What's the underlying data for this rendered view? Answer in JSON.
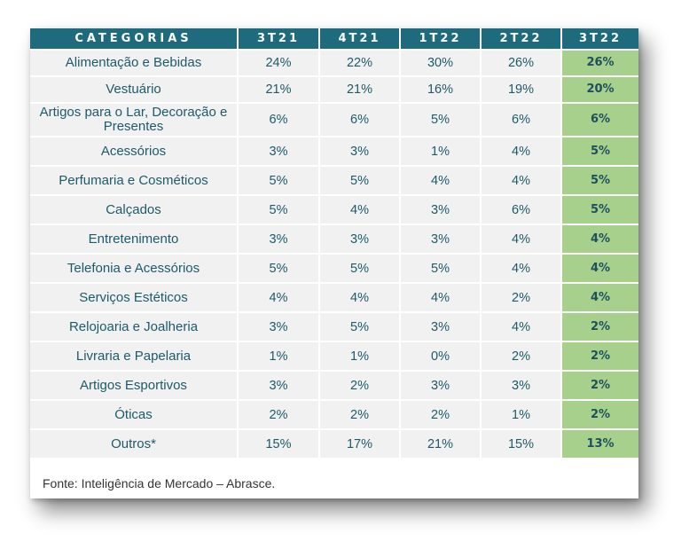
{
  "table": {
    "headers": [
      "CATEGORIAS",
      "3T21",
      "4T21",
      "1T22",
      "2T22",
      "3T22"
    ],
    "rows": [
      {
        "category": "Alimentação e Bebidas",
        "values": [
          "24%",
          "22%",
          "30%",
          "26%",
          "26%"
        ]
      },
      {
        "category": "Vestuário",
        "values": [
          "21%",
          "21%",
          "16%",
          "19%",
          "20%"
        ]
      },
      {
        "category": "Artigos para o Lar, Decoração e Presentes",
        "values": [
          "6%",
          "6%",
          "5%",
          "6%",
          "6%"
        ]
      },
      {
        "category": "Acessórios",
        "values": [
          "3%",
          "3%",
          "1%",
          "4%",
          "5%"
        ]
      },
      {
        "category": "Perfumaria e Cosméticos",
        "values": [
          "5%",
          "5%",
          "4%",
          "4%",
          "5%"
        ]
      },
      {
        "category": "Calçados",
        "values": [
          "5%",
          "4%",
          "3%",
          "6%",
          "5%"
        ]
      },
      {
        "category": "Entretenimento",
        "values": [
          "3%",
          "3%",
          "3%",
          "4%",
          "4%"
        ]
      },
      {
        "category": "Telefonia e Acessórios",
        "values": [
          "5%",
          "5%",
          "5%",
          "4%",
          "4%"
        ]
      },
      {
        "category": "Serviços Estéticos",
        "values": [
          "4%",
          "4%",
          "4%",
          "2%",
          "4%"
        ]
      },
      {
        "category": "Relojoaria e Joalheria",
        "values": [
          "3%",
          "5%",
          "3%",
          "4%",
          "2%"
        ]
      },
      {
        "category": "Livraria e Papelaria",
        "values": [
          "1%",
          "1%",
          "0%",
          "2%",
          "2%"
        ]
      },
      {
        "category": "Artigos Esportivos",
        "values": [
          "3%",
          "2%",
          "3%",
          "3%",
          "2%"
        ]
      },
      {
        "category": "Óticas",
        "values": [
          "2%",
          "2%",
          "2%",
          "1%",
          "2%"
        ]
      },
      {
        "category": "Outros*",
        "values": [
          "15%",
          "17%",
          "21%",
          "15%",
          "13%"
        ]
      }
    ]
  },
  "footnote": "Fonte: Inteligência de Mercado – Abrasce.",
  "colors": {
    "header_bg": "#1f6b7e",
    "cell_bg": "#f1f1f1",
    "highlight_bg": "#a8d08d",
    "text": "#1d5a6b"
  }
}
